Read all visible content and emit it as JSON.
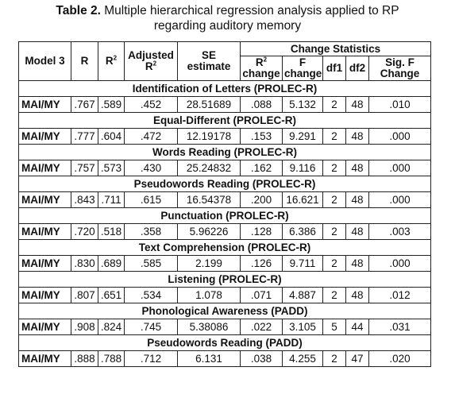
{
  "caption": {
    "label": "Table 2.",
    "text": " Multiple hierarchical regression analysis applied to RP",
    "text2": "regarding auditory memory"
  },
  "headers": {
    "model": "Model 3",
    "r": "R",
    "r2_base": "R",
    "r2_sup": "2",
    "adj_line1": "Adjusted",
    "adj_line2": "R",
    "adj_sup": "2",
    "se_line1": "SE",
    "se_line2": "estimate",
    "change_stats": "Change Statistics",
    "r2ch_base": "R",
    "r2ch_sup": "2",
    "r2ch_line2": "change",
    "fch_line1": "F",
    "fch_line2": "change",
    "df1": "df1",
    "df2": "df2",
    "sigf_line1": "Sig. F",
    "sigf_line2": "Change"
  },
  "sections": [
    {
      "title": "Identification of Letters (PROLEC-R)",
      "row": {
        "model": "MAI/MY",
        "r": ".767",
        "r2": ".589",
        "adj_r2": ".452",
        "se": "28.51689",
        "r2_change": ".088",
        "f_change": "5.132",
        "df1": "2",
        "df2": "48",
        "sig_f": ".010"
      }
    },
    {
      "title": "Equal-Different (PROLEC-R)",
      "row": {
        "model": "MAI/MY",
        "r": ".777",
        "r2": ".604",
        "adj_r2": ".472",
        "se": "12.19178",
        "r2_change": ".153",
        "f_change": "9.291",
        "df1": "2",
        "df2": "48",
        "sig_f": ".000"
      }
    },
    {
      "title": "Words Reading (PROLEC-R)",
      "row": {
        "model": "MAI/MY",
        "r": ".757",
        "r2": ".573",
        "adj_r2": ".430",
        "se": "25.24832",
        "r2_change": ".162",
        "f_change": "9.116",
        "df1": "2",
        "df2": "48",
        "sig_f": ".000"
      }
    },
    {
      "title": "Pseudowords Reading (PROLEC-R)",
      "row": {
        "model": "MAI/MY",
        "r": ".843",
        "r2": ".711",
        "adj_r2": ".615",
        "se": "16.54378",
        "r2_change": ".200",
        "f_change": "16.621",
        "df1": "2",
        "df2": "48",
        "sig_f": ".000"
      }
    },
    {
      "title": "Punctuation (PROLEC-R)",
      "row": {
        "model": "MAI/MY",
        "r": ".720",
        "r2": ".518",
        "adj_r2": ".358",
        "se": "5.96226",
        "r2_change": ".128",
        "f_change": "6.386",
        "df1": "2",
        "df2": "48",
        "sig_f": ".003"
      }
    },
    {
      "title": "Text Comprehension (PROLEC-R)",
      "row": {
        "model": "MAI/MY",
        "r": ".830",
        "r2": ".689",
        "adj_r2": ".585",
        "se": "2.199",
        "r2_change": ".126",
        "f_change": "9.711",
        "df1": "2",
        "df2": "48",
        "sig_f": ".000"
      }
    },
    {
      "title": "Listening (PROLEC-R)",
      "row": {
        "model": "MAI/MY",
        "r": ".807",
        "r2": ".651",
        "adj_r2": ".534",
        "se": "1.078",
        "r2_change": ".071",
        "f_change": "4.887",
        "df1": "2",
        "df2": "48",
        "sig_f": ".012"
      }
    },
    {
      "title": "Phonological Awareness (PADD)",
      "row": {
        "model": "MAI/MY",
        "r": ".908",
        "r2": ".824",
        "adj_r2": ".745",
        "se": "5.38086",
        "r2_change": ".022",
        "f_change": "3.105",
        "df1": "5",
        "df2": "44",
        "sig_f": ".031"
      }
    },
    {
      "title": "Pseudowords Reading (PADD)",
      "row": {
        "model": "MAI/MY",
        "r": ".888",
        "r2": ".788",
        "adj_r2": ".712",
        "se": "6.131",
        "r2_change": ".038",
        "f_change": "4.255",
        "df1": "2",
        "df2": "47",
        "sig_f": ".020"
      }
    }
  ]
}
